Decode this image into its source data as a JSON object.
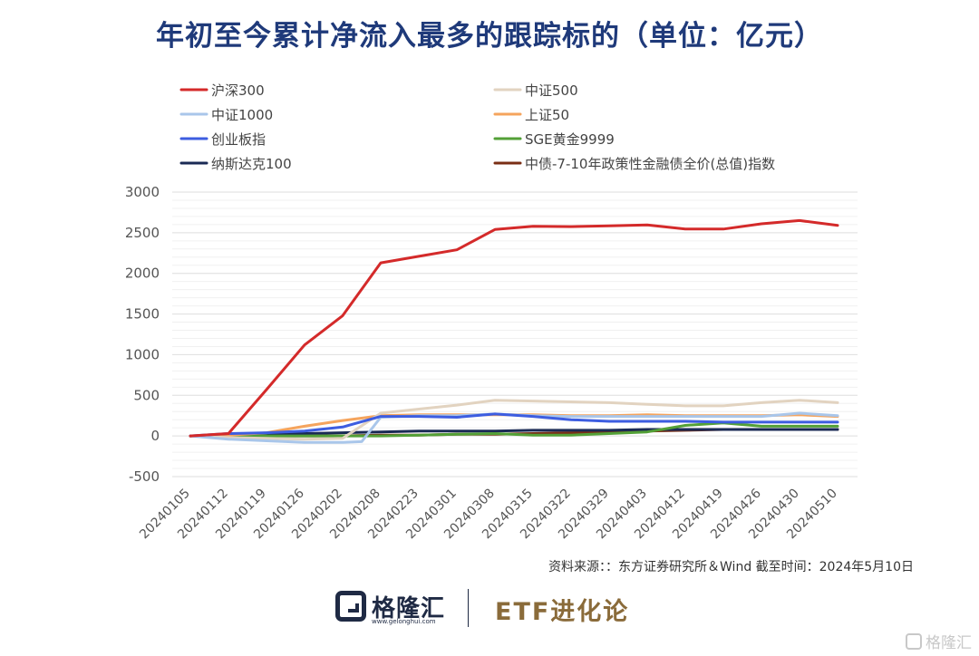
{
  "title": "年初至今累计净流入最多的跟踪标的（单位：亿元）",
  "source": "资料来源：：东方证券研究所＆Wind    截至时间：2024年5月10日",
  "footer": {
    "logo_text": "格隆汇",
    "logo_url": "www.gelonghui.com",
    "brand": "ETF进化论"
  },
  "watermark": "格隆汇",
  "chart_data": {
    "type": "line",
    "title": "年初至今累计净流入最多的跟踪标的（单位：亿元）",
    "xlabel": "",
    "ylabel": "",
    "ylim": [
      -500,
      3000
    ],
    "yticks": [
      3000,
      2500,
      2000,
      1500,
      1000,
      500,
      0,
      -500
    ],
    "ytick_labels": [
      "3000",
      "2500",
      "2000",
      "1500",
      "1000",
      "500",
      "0",
      "-500"
    ],
    "x_ticks": [
      "20240105",
      "20240112",
      "20240119",
      "20240126",
      "20240202",
      "20240208",
      "20240223",
      "20240301",
      "20240308",
      "20240315",
      "20240322",
      "20240329",
      "20240403",
      "20240412",
      "20240419",
      "20240426",
      "20240430",
      "20240510"
    ],
    "grid": true,
    "legend_position": "top",
    "series": [
      {
        "name": "沪深300",
        "color": "#d42a2a",
        "width": 3,
        "values": [
          [
            0,
            0
          ],
          [
            2,
            30
          ],
          [
            4,
            570
          ],
          [
            6,
            1120
          ],
          [
            8,
            1480
          ],
          [
            10,
            2130
          ],
          [
            12,
            2210
          ],
          [
            14,
            2290
          ],
          [
            16,
            2540
          ],
          [
            18,
            2580
          ],
          [
            20,
            2575
          ],
          [
            22,
            2585
          ],
          [
            24,
            2595
          ],
          [
            26,
            2545
          ],
          [
            28,
            2545
          ],
          [
            30,
            2610
          ],
          [
            32,
            2650
          ],
          [
            34,
            2590
          ]
        ]
      },
      {
        "name": "中证500",
        "color": "#e2d3c0",
        "width": 3,
        "values": [
          [
            0,
            0
          ],
          [
            2,
            -20
          ],
          [
            4,
            -30
          ],
          [
            6,
            -40
          ],
          [
            8,
            -30
          ],
          [
            10,
            280
          ],
          [
            12,
            330
          ],
          [
            14,
            380
          ],
          [
            16,
            440
          ],
          [
            18,
            430
          ],
          [
            20,
            420
          ],
          [
            22,
            410
          ],
          [
            24,
            390
          ],
          [
            26,
            370
          ],
          [
            28,
            370
          ],
          [
            30,
            410
          ],
          [
            32,
            440
          ],
          [
            34,
            410
          ]
        ]
      },
      {
        "name": "中证1000",
        "color": "#a9c6ea",
        "width": 3,
        "values": [
          [
            0,
            0
          ],
          [
            2,
            -40
          ],
          [
            4,
            -60
          ],
          [
            6,
            -80
          ],
          [
            8,
            -80
          ],
          [
            9,
            -70
          ],
          [
            10,
            230
          ],
          [
            12,
            250
          ],
          [
            14,
            250
          ],
          [
            16,
            270
          ],
          [
            18,
            250
          ],
          [
            20,
            240
          ],
          [
            22,
            240
          ],
          [
            24,
            240
          ],
          [
            26,
            240
          ],
          [
            28,
            240
          ],
          [
            30,
            240
          ],
          [
            32,
            280
          ],
          [
            34,
            250
          ]
        ]
      },
      {
        "name": "上证50",
        "color": "#f5a45d",
        "width": 3,
        "values": [
          [
            0,
            0
          ],
          [
            2,
            10
          ],
          [
            4,
            40
          ],
          [
            6,
            120
          ],
          [
            8,
            190
          ],
          [
            10,
            250
          ],
          [
            12,
            260
          ],
          [
            14,
            260
          ],
          [
            16,
            260
          ],
          [
            18,
            260
          ],
          [
            20,
            250
          ],
          [
            22,
            250
          ],
          [
            24,
            260
          ],
          [
            26,
            250
          ],
          [
            28,
            250
          ],
          [
            30,
            250
          ],
          [
            32,
            260
          ],
          [
            34,
            240
          ]
        ]
      },
      {
        "name": "创业板指",
        "color": "#3d5de0",
        "width": 3,
        "values": [
          [
            0,
            0
          ],
          [
            2,
            30
          ],
          [
            4,
            40
          ],
          [
            6,
            60
          ],
          [
            8,
            110
          ],
          [
            10,
            240
          ],
          [
            12,
            240
          ],
          [
            14,
            230
          ],
          [
            16,
            270
          ],
          [
            18,
            240
          ],
          [
            20,
            200
          ],
          [
            22,
            180
          ],
          [
            24,
            180
          ],
          [
            26,
            180
          ],
          [
            28,
            170
          ],
          [
            30,
            170
          ],
          [
            32,
            170
          ],
          [
            34,
            170
          ]
        ]
      },
      {
        "name": "SGE黄金9999",
        "color": "#53a037",
        "width": 3,
        "values": [
          [
            0,
            0
          ],
          [
            2,
            0
          ],
          [
            4,
            0
          ],
          [
            6,
            0
          ],
          [
            8,
            0
          ],
          [
            10,
            0
          ],
          [
            12,
            10
          ],
          [
            14,
            20
          ],
          [
            16,
            30
          ],
          [
            18,
            10
          ],
          [
            20,
            10
          ],
          [
            22,
            30
          ],
          [
            24,
            50
          ],
          [
            26,
            130
          ],
          [
            28,
            160
          ],
          [
            30,
            120
          ],
          [
            32,
            120
          ],
          [
            34,
            120
          ]
        ]
      },
      {
        "name": "纳斯达克100",
        "color": "#1a2a55",
        "width": 3,
        "values": [
          [
            0,
            0
          ],
          [
            2,
            10
          ],
          [
            4,
            20
          ],
          [
            6,
            30
          ],
          [
            8,
            40
          ],
          [
            10,
            50
          ],
          [
            12,
            60
          ],
          [
            14,
            60
          ],
          [
            16,
            60
          ],
          [
            18,
            70
          ],
          [
            20,
            70
          ],
          [
            22,
            70
          ],
          [
            24,
            80
          ],
          [
            26,
            80
          ],
          [
            28,
            80
          ],
          [
            30,
            80
          ],
          [
            32,
            80
          ],
          [
            34,
            80
          ]
        ]
      },
      {
        "name": "中债-7-10年政策性金融债全价(总值)指数",
        "color": "#7a2e14",
        "width": 3,
        "values": [
          [
            0,
            0
          ],
          [
            2,
            0
          ],
          [
            4,
            0
          ],
          [
            6,
            0
          ],
          [
            8,
            0
          ],
          [
            10,
            10
          ],
          [
            12,
            10
          ],
          [
            14,
            20
          ],
          [
            16,
            20
          ],
          [
            18,
            30
          ],
          [
            20,
            40
          ],
          [
            22,
            50
          ],
          [
            24,
            60
          ],
          [
            26,
            70
          ],
          [
            28,
            80
          ],
          [
            30,
            80
          ],
          [
            32,
            80
          ],
          [
            34,
            80
          ]
        ]
      }
    ]
  }
}
